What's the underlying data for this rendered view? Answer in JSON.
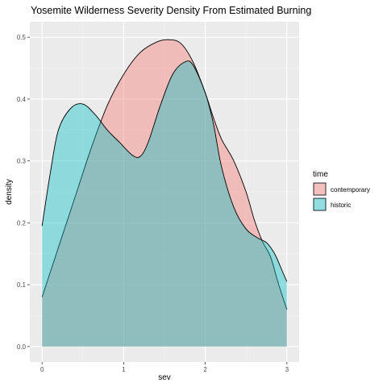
{
  "chart_data": {
    "type": "area",
    "title": "Yosemite Wilderness Severity Density From Estimated Burning",
    "xlabel": "sev",
    "ylabel": "density",
    "xlim": [
      -0.15,
      3.15
    ],
    "ylim": [
      -0.025,
      0.525
    ],
    "x_ticks": [
      0,
      1,
      2,
      3
    ],
    "y_ticks": [
      0.0,
      0.1,
      0.2,
      0.3,
      0.4,
      0.5
    ],
    "x_tick_labels": [
      "0",
      "1",
      "2",
      "3"
    ],
    "y_tick_labels": [
      "0.0",
      "0.1",
      "0.2",
      "0.3",
      "0.4",
      "0.5"
    ],
    "grid": true,
    "legend": {
      "title": "time",
      "placement": "right"
    },
    "series": [
      {
        "name": "contemporary",
        "color": "#F8766D",
        "points": [
          [
            0.0,
            0.08
          ],
          [
            0.2,
            0.16
          ],
          [
            0.4,
            0.24
          ],
          [
            0.6,
            0.32
          ],
          [
            0.8,
            0.39
          ],
          [
            1.0,
            0.44
          ],
          [
            1.2,
            0.475
          ],
          [
            1.4,
            0.492
          ],
          [
            1.55,
            0.496
          ],
          [
            1.7,
            0.49
          ],
          [
            1.85,
            0.46
          ],
          [
            2.0,
            0.41
          ],
          [
            2.1,
            0.37
          ],
          [
            2.2,
            0.335
          ],
          [
            2.35,
            0.3
          ],
          [
            2.5,
            0.25
          ],
          [
            2.6,
            0.205
          ],
          [
            2.7,
            0.17
          ],
          [
            2.8,
            0.145
          ],
          [
            2.9,
            0.1
          ],
          [
            3.0,
            0.06
          ]
        ]
      },
      {
        "name": "historic",
        "color": "#00BFC4",
        "points": [
          [
            0.0,
            0.195
          ],
          [
            0.1,
            0.28
          ],
          [
            0.2,
            0.35
          ],
          [
            0.35,
            0.385
          ],
          [
            0.5,
            0.392
          ],
          [
            0.65,
            0.375
          ],
          [
            0.8,
            0.35
          ],
          [
            0.95,
            0.33
          ],
          [
            1.1,
            0.31
          ],
          [
            1.2,
            0.307
          ],
          [
            1.3,
            0.33
          ],
          [
            1.45,
            0.39
          ],
          [
            1.6,
            0.44
          ],
          [
            1.75,
            0.46
          ],
          [
            1.85,
            0.455
          ],
          [
            2.0,
            0.41
          ],
          [
            2.1,
            0.36
          ],
          [
            2.2,
            0.29
          ],
          [
            2.35,
            0.225
          ],
          [
            2.5,
            0.19
          ],
          [
            2.65,
            0.175
          ],
          [
            2.75,
            0.168
          ],
          [
            2.85,
            0.15
          ],
          [
            2.95,
            0.12
          ],
          [
            3.0,
            0.105
          ]
        ]
      }
    ]
  }
}
